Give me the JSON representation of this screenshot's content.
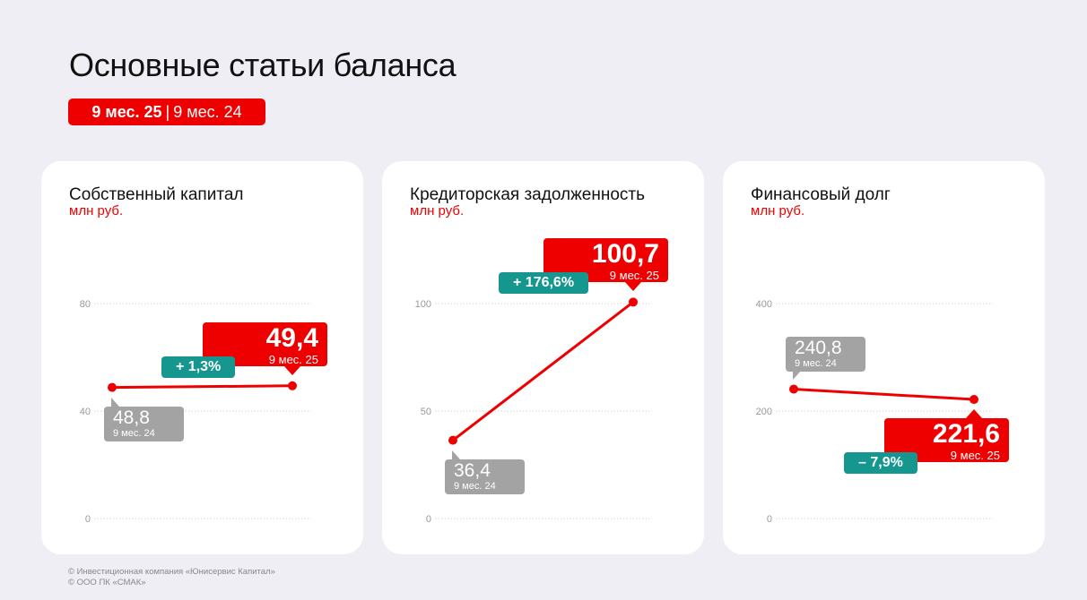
{
  "title": "Основные статьи баланса",
  "badge": {
    "current": "9 мес. 25",
    "separator": "|",
    "previous": "9 мес. 24"
  },
  "colors": {
    "accent": "#ee0000",
    "previous": "#a3a3a3",
    "change": "#15968f",
    "background": "#efeef5"
  },
  "chart_data": [
    {
      "type": "line",
      "title": "Собственный капитал",
      "unit": "млн руб.",
      "yticks": [
        0,
        40,
        80
      ],
      "ylim": [
        0,
        80
      ],
      "grid": true,
      "categories": [
        "9 мес. 24",
        "9 мес. 25"
      ],
      "values": [
        48.8,
        49.4
      ],
      "labels": [
        "48,8",
        "49,4"
      ],
      "change": "+ 1,3%"
    },
    {
      "type": "line",
      "title": "Кредиторская задолженность",
      "unit": "млн руб.",
      "yticks": [
        0,
        50,
        100
      ],
      "ylim": [
        0,
        100
      ],
      "grid": true,
      "categories": [
        "9 мес. 24",
        "9 мес. 25"
      ],
      "values": [
        36.4,
        100.7
      ],
      "labels": [
        "36,4",
        "100,7"
      ],
      "change": "+ 176,6%"
    },
    {
      "type": "line",
      "title": "Финансовый долг",
      "unit": "млн руб.",
      "yticks": [
        0,
        200,
        400
      ],
      "ylim": [
        0,
        400
      ],
      "grid": true,
      "categories": [
        "9 мес. 24",
        "9 мес. 25"
      ],
      "values": [
        240.8,
        221.6
      ],
      "labels": [
        "240,8",
        "221,6"
      ],
      "change": "– 7,9%"
    }
  ],
  "footer": [
    "© Инвестиционная компания «Юнисервис Капитал»",
    "© ООО ПК «СМАК»"
  ]
}
